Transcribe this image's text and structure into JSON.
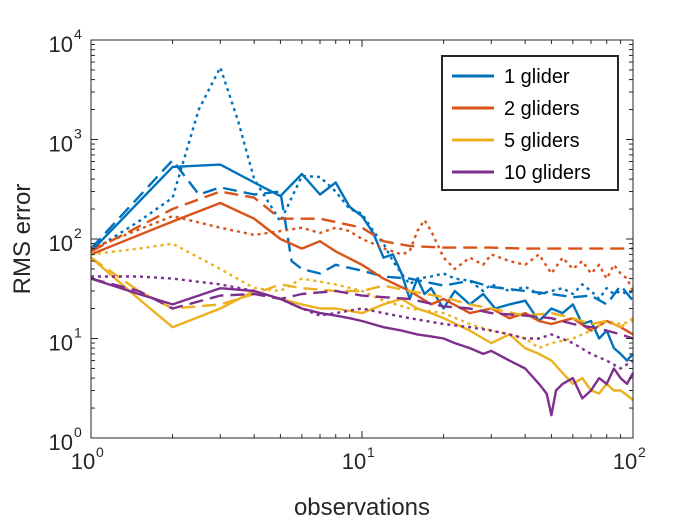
{
  "chart_data": {
    "type": "line",
    "title": "",
    "xlabel": "observations",
    "ylabel": "RMS error",
    "x_scale": "log",
    "y_scale": "log",
    "xlim": [
      1,
      100
    ],
    "ylim": [
      1,
      10000
    ],
    "grid": false,
    "legend_position": "top-right",
    "x_ticks": [
      {
        "base": "10",
        "exp": "0",
        "value": 1
      },
      {
        "base": "10",
        "exp": "1",
        "value": 10
      },
      {
        "base": "10",
        "exp": "2",
        "value": 100
      }
    ],
    "y_ticks": [
      {
        "base": "10",
        "exp": "0",
        "value": 1
      },
      {
        "base": "10",
        "exp": "1",
        "value": 10
      },
      {
        "base": "10",
        "exp": "2",
        "value": 100
      },
      {
        "base": "10",
        "exp": "3",
        "value": 1000
      },
      {
        "base": "10",
        "exp": "4",
        "value": 10000
      }
    ],
    "legend": [
      {
        "label": "1 glider",
        "color": "#0072BD"
      },
      {
        "label": "2 gliders",
        "color": "#D95319"
      },
      {
        "label": "5 gliders",
        "color": "#EDB120"
      },
      {
        "label": "10 gliders",
        "color": "#7E2F8E"
      }
    ],
    "series": [
      {
        "group": 0,
        "style": "solid",
        "color": "#0072BD",
        "x": [
          1,
          2,
          3,
          4,
          5,
          6,
          7,
          8,
          9,
          10,
          11,
          12,
          13,
          14,
          15,
          16,
          17,
          18,
          19,
          20,
          22,
          25,
          28,
          31,
          35,
          40,
          45,
          50,
          55,
          60,
          65,
          70,
          75,
          80,
          85,
          90,
          95,
          100
        ],
        "y": [
          75,
          530,
          560,
          370,
          270,
          450,
          280,
          370,
          210,
          170,
          115,
          65,
          70,
          45,
          25,
          40,
          28,
          32,
          25,
          20,
          30,
          22,
          28,
          20,
          22,
          24,
          15,
          20,
          18,
          22,
          14,
          15,
          10,
          12,
          8,
          7,
          6,
          7
        ]
      },
      {
        "group": 0,
        "style": "dashed",
        "color": "#0072BD",
        "x": [
          1,
          2,
          2.5,
          3,
          4,
          5,
          5.5,
          6,
          7,
          8,
          10,
          12,
          15,
          18,
          20,
          25,
          30,
          40,
          50,
          60,
          70,
          80,
          90,
          100
        ],
        "y": [
          80,
          620,
          280,
          330,
          280,
          300,
          60,
          50,
          45,
          55,
          48,
          42,
          40,
          36,
          34,
          38,
          33,
          30,
          28,
          26,
          27,
          22,
          34,
          24
        ]
      },
      {
        "group": 0,
        "style": "dotted",
        "color": "#0072BD",
        "x": [
          1,
          1.5,
          2,
          2.5,
          3,
          3.5,
          4,
          5,
          6,
          7,
          8,
          9,
          10,
          11,
          12,
          13,
          14,
          15,
          16,
          18,
          20,
          22,
          25,
          28,
          30,
          35,
          40,
          45,
          50,
          55,
          60,
          65,
          70,
          75,
          80,
          85,
          90,
          95,
          100
        ],
        "y": [
          75,
          150,
          260,
          2000,
          5300,
          1500,
          400,
          150,
          430,
          420,
          300,
          200,
          180,
          120,
          90,
          60,
          45,
          35,
          40,
          42,
          45,
          40,
          38,
          30,
          35,
          30,
          33,
          28,
          30,
          32,
          28,
          35,
          30,
          25,
          32,
          28,
          30,
          28,
          30
        ]
      },
      {
        "group": 1,
        "style": "solid",
        "color": "#D95319",
        "x": [
          1,
          2,
          3,
          4,
          5,
          6,
          7,
          8,
          10,
          12,
          15,
          18,
          20,
          25,
          30,
          35,
          40,
          45,
          50,
          60,
          70,
          80,
          90,
          100
        ],
        "y": [
          70,
          150,
          230,
          160,
          100,
          80,
          95,
          75,
          55,
          40,
          30,
          22,
          25,
          18,
          20,
          16,
          18,
          15,
          14,
          16,
          12,
          15,
          13,
          11
        ]
      },
      {
        "group": 1,
        "style": "dashed",
        "color": "#D95319",
        "x": [
          1,
          2,
          3,
          4,
          5,
          7,
          10,
          12,
          15,
          20,
          30,
          40,
          50,
          60,
          70,
          80,
          90,
          100
        ],
        "y": [
          75,
          200,
          300,
          260,
          160,
          160,
          130,
          95,
          85,
          82,
          82,
          80,
          80,
          80,
          80,
          80,
          80,
          80
        ]
      },
      {
        "group": 1,
        "style": "dotted",
        "color": "#D95319",
        "x": [
          1,
          2,
          3,
          4,
          5,
          6,
          7,
          8,
          9,
          10,
          11,
          12,
          13,
          14,
          15,
          16,
          17,
          18,
          20,
          22,
          25,
          28,
          30,
          35,
          40,
          45,
          50,
          55,
          60,
          65,
          70,
          75,
          80,
          85,
          90,
          95,
          100
        ],
        "y": [
          80,
          170,
          130,
          110,
          120,
          130,
          115,
          130,
          120,
          100,
          90,
          80,
          75,
          70,
          75,
          120,
          155,
          120,
          65,
          50,
          65,
          55,
          70,
          60,
          55,
          70,
          45,
          65,
          50,
          60,
          45,
          55,
          40,
          55,
          45,
          40,
          30
        ]
      },
      {
        "group": 2,
        "style": "solid",
        "color": "#EDB120",
        "x": [
          1,
          1.5,
          2,
          3,
          4,
          5,
          6,
          7,
          8,
          10,
          12,
          14,
          16,
          18,
          20,
          25,
          30,
          35,
          40,
          45,
          50,
          55,
          60,
          65,
          70,
          75,
          80,
          85,
          90,
          95,
          100
        ],
        "y": [
          65,
          25,
          13,
          20,
          30,
          25,
          22,
          20,
          20,
          18,
          22,
          25,
          20,
          18,
          16,
          12,
          9,
          11,
          8,
          7,
          6,
          4.5,
          3.5,
          4,
          3,
          2.8,
          3.5,
          3,
          3,
          2.7,
          2.4
        ]
      },
      {
        "group": 2,
        "style": "dashed",
        "color": "#EDB120",
        "x": [
          1,
          1.5,
          2,
          3,
          4,
          5,
          6,
          8,
          10,
          12,
          15,
          20,
          25,
          30,
          40,
          50,
          60,
          70,
          80,
          90,
          100
        ],
        "y": [
          65,
          30,
          20,
          22,
          28,
          35,
          32,
          30,
          30,
          34,
          30,
          26,
          22,
          20,
          17,
          18,
          16,
          14,
          15,
          13,
          16
        ]
      },
      {
        "group": 2,
        "style": "dotted",
        "color": "#EDB120",
        "x": [
          1,
          1.5,
          2,
          3,
          4,
          5,
          6,
          8,
          10,
          12,
          15,
          20,
          25,
          30,
          35,
          40,
          45,
          50,
          60,
          70,
          80,
          90,
          100
        ],
        "y": [
          70,
          80,
          90,
          50,
          32,
          30,
          40,
          35,
          30,
          24,
          20,
          18,
          14,
          12,
          11,
          10,
          8,
          9,
          10,
          12,
          15,
          14,
          15
        ]
      },
      {
        "group": 3,
        "style": "solid",
        "color": "#7E2F8E",
        "x": [
          1,
          1.5,
          2,
          3,
          4,
          5,
          6,
          7,
          8,
          9,
          10,
          12,
          14,
          16,
          18,
          20,
          22,
          25,
          28,
          30,
          35,
          40,
          45,
          48,
          50,
          52,
          55,
          60,
          65,
          70,
          75,
          80,
          85,
          90,
          95,
          100
        ],
        "y": [
          40,
          28,
          22,
          32,
          30,
          25,
          20,
          18,
          17,
          16,
          15,
          13,
          12,
          11,
          10.5,
          10,
          9,
          8,
          7,
          7.5,
          6,
          5,
          3.5,
          2.8,
          1.7,
          3,
          3.5,
          4,
          2.5,
          3,
          4,
          3.5,
          5,
          4,
          3.5,
          4.5
        ]
      },
      {
        "group": 3,
        "style": "dashed",
        "color": "#7E2F8E",
        "x": [
          1,
          1.5,
          2,
          3,
          4,
          5,
          6,
          8,
          10,
          12,
          15,
          20,
          25,
          30,
          40,
          50,
          60,
          70,
          80,
          90,
          100
        ],
        "y": [
          40,
          30,
          20,
          27,
          28,
          25,
          28,
          30,
          27,
          26,
          25,
          21,
          20,
          18,
          17,
          16,
          14,
          13,
          12,
          11,
          10
        ]
      },
      {
        "group": 3,
        "style": "dotted",
        "color": "#7E2F8E",
        "x": [
          1,
          1.5,
          2,
          3,
          4,
          5,
          6,
          7,
          8,
          10,
          12,
          15,
          20,
          25,
          30,
          35,
          40,
          45,
          50,
          60,
          70,
          80,
          90,
          100
        ],
        "y": [
          42,
          42,
          40,
          35,
          30,
          25,
          20,
          17,
          18,
          20,
          18,
          16,
          14,
          13,
          12,
          11,
          10,
          10,
          11,
          9,
          7,
          6,
          5,
          6
        ]
      }
    ]
  }
}
